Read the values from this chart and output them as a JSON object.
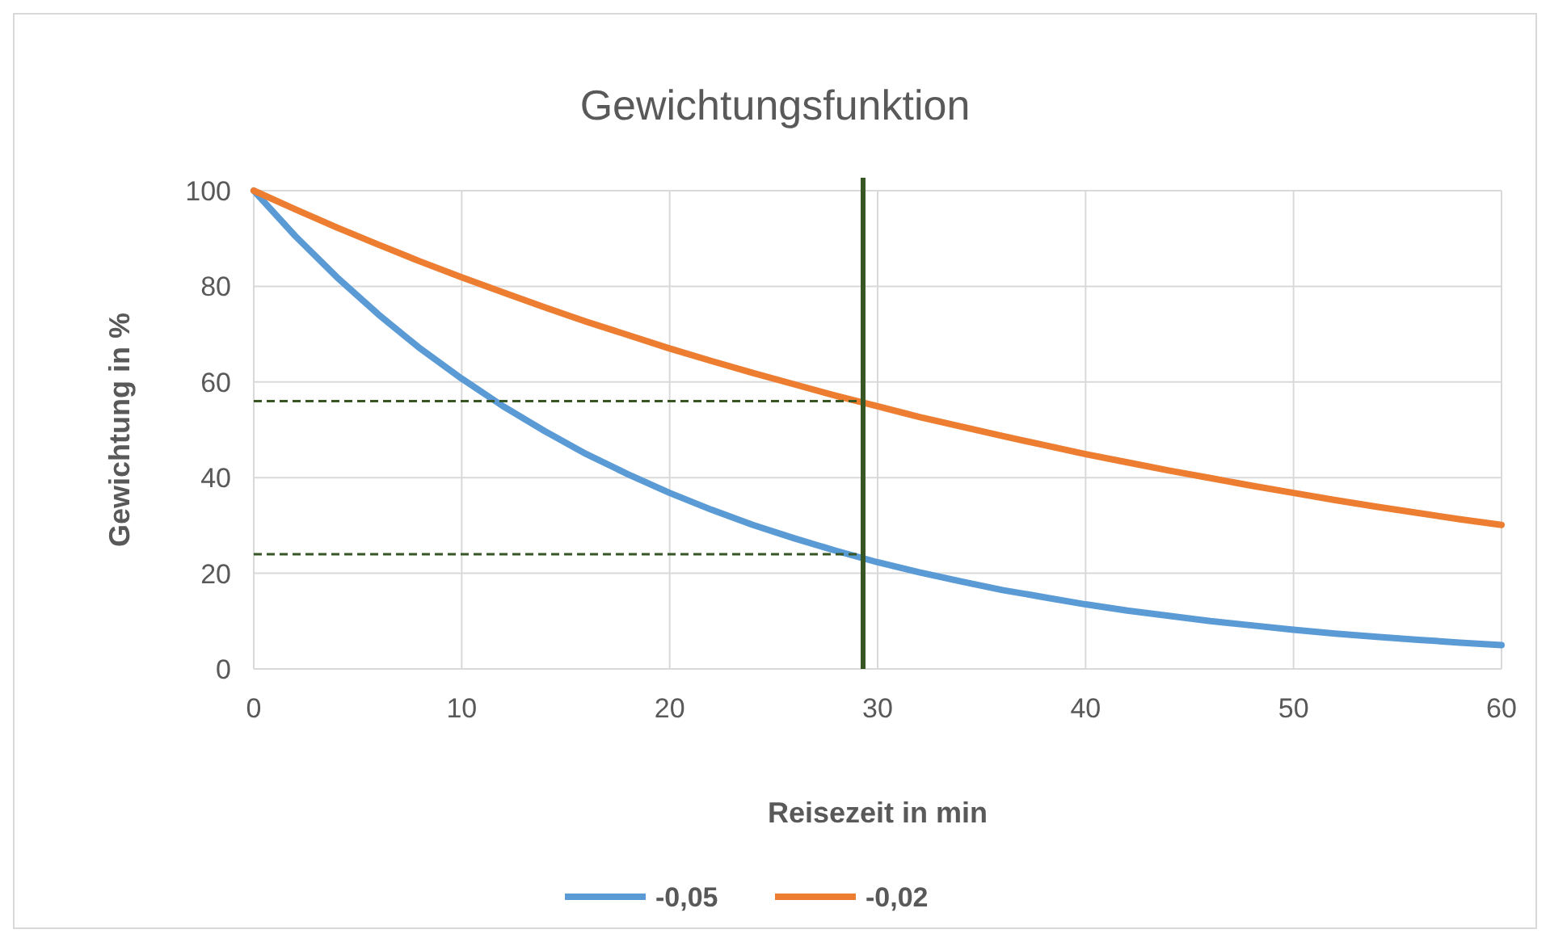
{
  "chart_data": {
    "type": "line",
    "title": "Gewichtungsfunktion",
    "xlabel": "Reisezeit in min",
    "ylabel": "Gewichtung in %",
    "x": [
      0,
      2,
      4,
      6,
      8,
      10,
      12,
      14,
      16,
      18,
      20,
      22,
      24,
      26,
      28,
      30,
      32,
      34,
      36,
      38,
      40,
      42,
      44,
      46,
      48,
      50,
      52,
      54,
      56,
      58,
      60
    ],
    "series": [
      {
        "name": "-0,05",
        "color": "#5b9bd5",
        "values": [
          100,
          90.5,
          81.9,
          74.1,
          67.0,
          60.7,
          54.9,
          49.7,
          44.9,
          40.7,
          36.8,
          33.3,
          30.1,
          27.3,
          24.7,
          22.3,
          20.2,
          18.3,
          16.5,
          15.0,
          13.5,
          12.2,
          11.1,
          10.0,
          9.1,
          8.2,
          7.4,
          6.7,
          6.1,
          5.5,
          5.0
        ]
      },
      {
        "name": "-0,02",
        "color": "#ed7d31",
        "values": [
          100,
          96.1,
          92.3,
          88.7,
          85.2,
          81.9,
          78.7,
          75.6,
          72.6,
          69.8,
          67.0,
          64.4,
          61.9,
          59.5,
          57.1,
          54.9,
          52.7,
          50.7,
          48.7,
          46.8,
          44.9,
          43.2,
          41.5,
          39.9,
          38.3,
          36.8,
          35.3,
          33.9,
          32.6,
          31.3,
          30.1
        ]
      }
    ],
    "xlim": [
      0,
      60
    ],
    "xticks": [
      0,
      10,
      20,
      30,
      40,
      50,
      60
    ],
    "ylim": [
      0,
      100
    ],
    "yticks": [
      0,
      20,
      40,
      60,
      80,
      100
    ],
    "grid": true,
    "legend": "bottom",
    "marker": "none",
    "line_style": "solid",
    "ref_lines": [
      {
        "axis": "x",
        "value": 29.3,
        "color": "#375623",
        "line_style": "solid"
      },
      {
        "axis": "y",
        "value": 56,
        "color": "#375623",
        "line_style": "dashed"
      },
      {
        "axis": "y",
        "value": 24,
        "color": "#375623",
        "line_style": "dashed"
      }
    ]
  }
}
